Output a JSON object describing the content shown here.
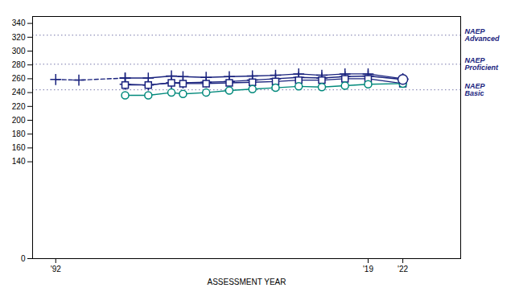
{
  "chart_data": {
    "type": "line",
    "xlabel": "ASSESSMENT YEAR",
    "xlim": [
      1990,
      2027
    ],
    "xticks": [
      {
        "value": 1992,
        "label": "'92"
      },
      {
        "value": 2019,
        "label": "'19"
      },
      {
        "value": 2022,
        "label": "'22"
      }
    ],
    "ylim": [
      0,
      350
    ],
    "yticks": [
      0,
      140,
      160,
      180,
      200,
      220,
      240,
      260,
      280,
      300,
      320,
      340
    ],
    "grid": false,
    "series": [
      {
        "color": "#1a237e",
        "marker": "plus",
        "line_style": "dashed",
        "x": [
          1992,
          1994,
          1998
        ],
        "values": [
          259,
          258,
          261
        ]
      },
      {
        "color": "#1a237e",
        "marker": "plus",
        "line_style": "solid",
        "x": [
          1998,
          2000,
          2002,
          2003,
          2005,
          2007,
          2009,
          2011,
          2013,
          2015,
          2017,
          2019,
          2022
        ],
        "values": [
          261,
          261,
          264,
          263,
          262,
          263,
          264,
          265,
          267,
          265,
          267,
          267,
          260
        ]
      },
      {
        "color": "#1a237e",
        "marker": "plus",
        "line_style": "solid",
        "x": [
          1998,
          2000,
          2002,
          2003,
          2005,
          2007,
          2009,
          2011,
          2013,
          2015,
          2017,
          2019,
          2022
        ],
        "values": [
          252,
          251,
          254,
          254,
          255,
          256,
          258,
          260,
          262,
          261,
          263,
          264,
          259
        ]
      },
      {
        "color": "#1a237e",
        "marker": "square",
        "line_style": "solid",
        "x": [
          1998,
          2000,
          2002,
          2003,
          2005,
          2007,
          2009,
          2011,
          2013,
          2015,
          2017,
          2019,
          2022
        ],
        "values": [
          251,
          251,
          254,
          253,
          253,
          254,
          255,
          256,
          258,
          258,
          260,
          260,
          253
        ]
      },
      {
        "color": "#00897b",
        "marker": "circle",
        "line_style": "solid",
        "x": [
          1998,
          2000,
          2002,
          2003,
          2005,
          2007,
          2009,
          2011,
          2013,
          2015,
          2017,
          2019,
          2022
        ],
        "values": [
          236,
          236,
          240,
          238,
          240,
          243,
          245,
          247,
          249,
          248,
          250,
          252,
          253
        ]
      },
      {
        "type": "scatter",
        "color": "#1a237e",
        "marker": "circle",
        "x": [
          2022
        ],
        "values": [
          259
        ]
      }
    ],
    "reference_lines": [
      {
        "value": 323,
        "label": "NAEP\nAdvanced",
        "color": "#7777aa",
        "line_style": "dotted"
      },
      {
        "value": 281,
        "label": "NAEP\nProficient",
        "color": "#7777aa",
        "line_style": "dotted"
      },
      {
        "value": 244,
        "label": "NAEP\nBasic",
        "color": "#7777aa",
        "line_style": "dotted"
      }
    ]
  }
}
